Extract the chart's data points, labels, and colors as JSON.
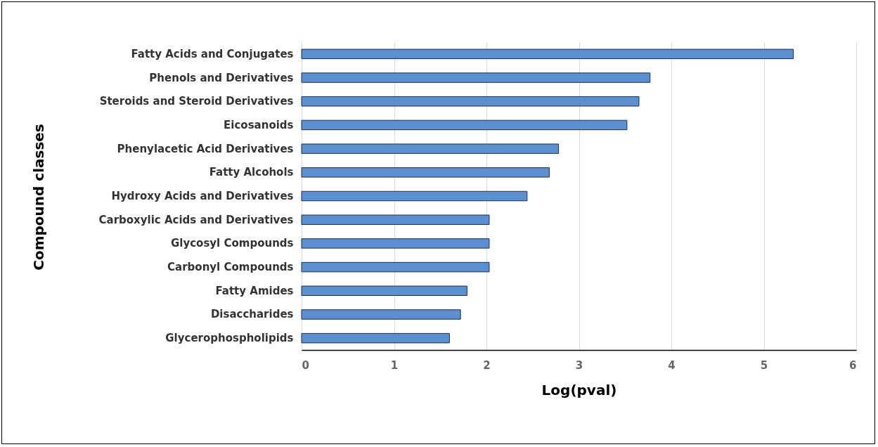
{
  "chart_data": {
    "type": "bar",
    "orientation": "horizontal",
    "xlabel": "Log(pval)",
    "ylabel": "Compound classes",
    "categories": [
      "Fatty Acids and Conjugates",
      "Phenols and Derivatives",
      "Steroids and Steroid Derivatives",
      "Eicosanoids",
      "Phenylacetic Acid Derivatives",
      "Fatty Alcohols",
      "Hydroxy Acids and Derivatives",
      "Carboxylic Acids and Derivatives",
      "Glycosyl Compounds",
      "Carbonyl Compounds",
      "Fatty Amides",
      "Disaccharides",
      "Glycerophospholipids"
    ],
    "values": [
      5.32,
      3.77,
      3.65,
      3.52,
      2.78,
      2.68,
      2.44,
      2.03,
      2.03,
      2.03,
      1.79,
      1.72,
      1.6
    ],
    "color": "#5b8fd0",
    "xlim": [
      0,
      6
    ],
    "xticks": [
      0,
      1,
      2,
      3,
      4,
      5,
      6
    ],
    "grid": "x"
  }
}
